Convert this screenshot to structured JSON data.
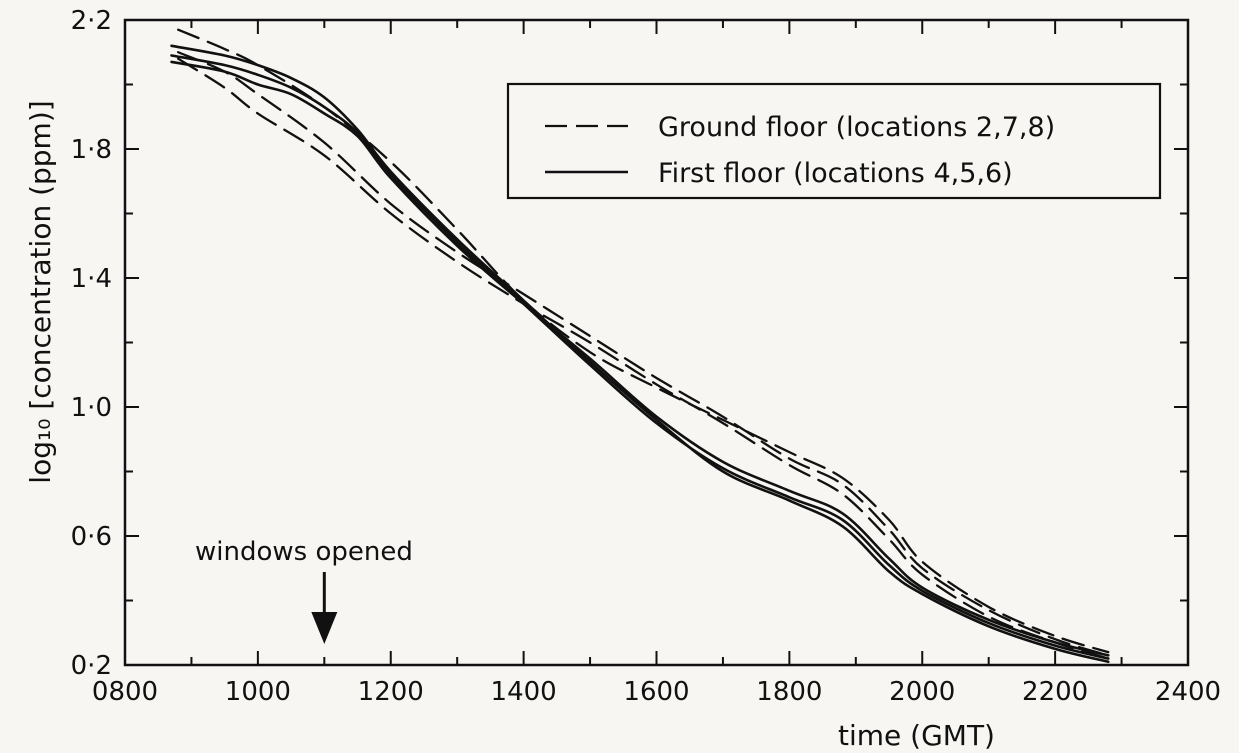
{
  "chart_data": {
    "type": "line",
    "xlabel": "time (GMT)",
    "ylabel": "log₁₀ [concentration (ppm)]",
    "xlim": [
      800,
      2400
    ],
    "ylim": [
      0.2,
      2.2
    ],
    "x_ticks": [
      "0800",
      "1000",
      "1200",
      "1400",
      "1600",
      "1800",
      "2000",
      "2200",
      "2400"
    ],
    "y_ticks": [
      "0.2",
      "0.6",
      "1.0",
      "1.4",
      "1.8",
      "2.2"
    ],
    "grid": false,
    "legend_position": "top-right",
    "legend": [
      {
        "label": "Ground floor (locations 2,7,8)",
        "style": "dashed"
      },
      {
        "label": "First floor (locations 4,5,6)",
        "style": "solid"
      }
    ],
    "annotation": {
      "text": "windows opened",
      "x": 1100
    },
    "series": [
      {
        "group": "Ground floor",
        "style": "dashed",
        "x": [
          880,
          950,
          1000,
          1100,
          1200,
          1300,
          1400,
          1500,
          1600,
          1700,
          1800,
          1880,
          1950,
          2000,
          2100,
          2200,
          2280
        ],
        "y": [
          2.17,
          2.11,
          2.06,
          1.93,
          1.76,
          1.55,
          1.33,
          1.17,
          1.06,
          0.96,
          0.86,
          0.78,
          0.65,
          0.52,
          0.38,
          0.29,
          0.24
        ]
      },
      {
        "group": "Ground floor",
        "style": "dashed",
        "x": [
          880,
          950,
          1000,
          1100,
          1200,
          1300,
          1400,
          1500,
          1600,
          1700,
          1800,
          1880,
          1950,
          2000,
          2100,
          2200,
          2280
        ],
        "y": [
          2.1,
          2.04,
          1.97,
          1.82,
          1.63,
          1.48,
          1.35,
          1.22,
          1.09,
          0.97,
          0.84,
          0.76,
          0.62,
          0.5,
          0.37,
          0.28,
          0.23
        ]
      },
      {
        "group": "Ground floor",
        "style": "dashed",
        "x": [
          880,
          950,
          1000,
          1100,
          1200,
          1300,
          1400,
          1500,
          1600,
          1700,
          1800,
          1880,
          1950,
          2000,
          2100,
          2200,
          2280
        ],
        "y": [
          2.08,
          1.99,
          1.91,
          1.78,
          1.6,
          1.45,
          1.32,
          1.2,
          1.07,
          0.95,
          0.82,
          0.73,
          0.59,
          0.48,
          0.35,
          0.27,
          0.22
        ]
      },
      {
        "group": "First floor",
        "style": "solid",
        "x": [
          870,
          950,
          1000,
          1050,
          1100,
          1150,
          1200,
          1300,
          1400,
          1500,
          1600,
          1700,
          1800,
          1880,
          1950,
          2000,
          2100,
          2200,
          2280
        ],
        "y": [
          2.12,
          2.09,
          2.06,
          2.02,
          1.96,
          1.86,
          1.73,
          1.52,
          1.33,
          1.14,
          0.96,
          0.8,
          0.71,
          0.63,
          0.49,
          0.42,
          0.32,
          0.25,
          0.21
        ]
      },
      {
        "group": "First floor",
        "style": "solid",
        "x": [
          870,
          950,
          1000,
          1050,
          1100,
          1150,
          1200,
          1300,
          1400,
          1500,
          1600,
          1700,
          1800,
          1880,
          1950,
          2000,
          2100,
          2200,
          2280
        ],
        "y": [
          2.09,
          2.06,
          2.03,
          1.99,
          1.93,
          1.85,
          1.72,
          1.51,
          1.32,
          1.13,
          0.95,
          0.81,
          0.72,
          0.65,
          0.51,
          0.43,
          0.33,
          0.26,
          0.22
        ]
      },
      {
        "group": "First floor",
        "style": "solid",
        "x": [
          870,
          950,
          1000,
          1050,
          1100,
          1150,
          1200,
          1300,
          1400,
          1500,
          1600,
          1700,
          1800,
          1880,
          1950,
          2000,
          2100,
          2200,
          2280
        ],
        "y": [
          2.07,
          2.04,
          2.0,
          1.97,
          1.91,
          1.84,
          1.71,
          1.5,
          1.32,
          1.15,
          0.97,
          0.83,
          0.74,
          0.67,
          0.53,
          0.44,
          0.34,
          0.27,
          0.23
        ]
      }
    ]
  },
  "colors": {
    "ink": "#111111",
    "paper": "#f7f6f2"
  }
}
